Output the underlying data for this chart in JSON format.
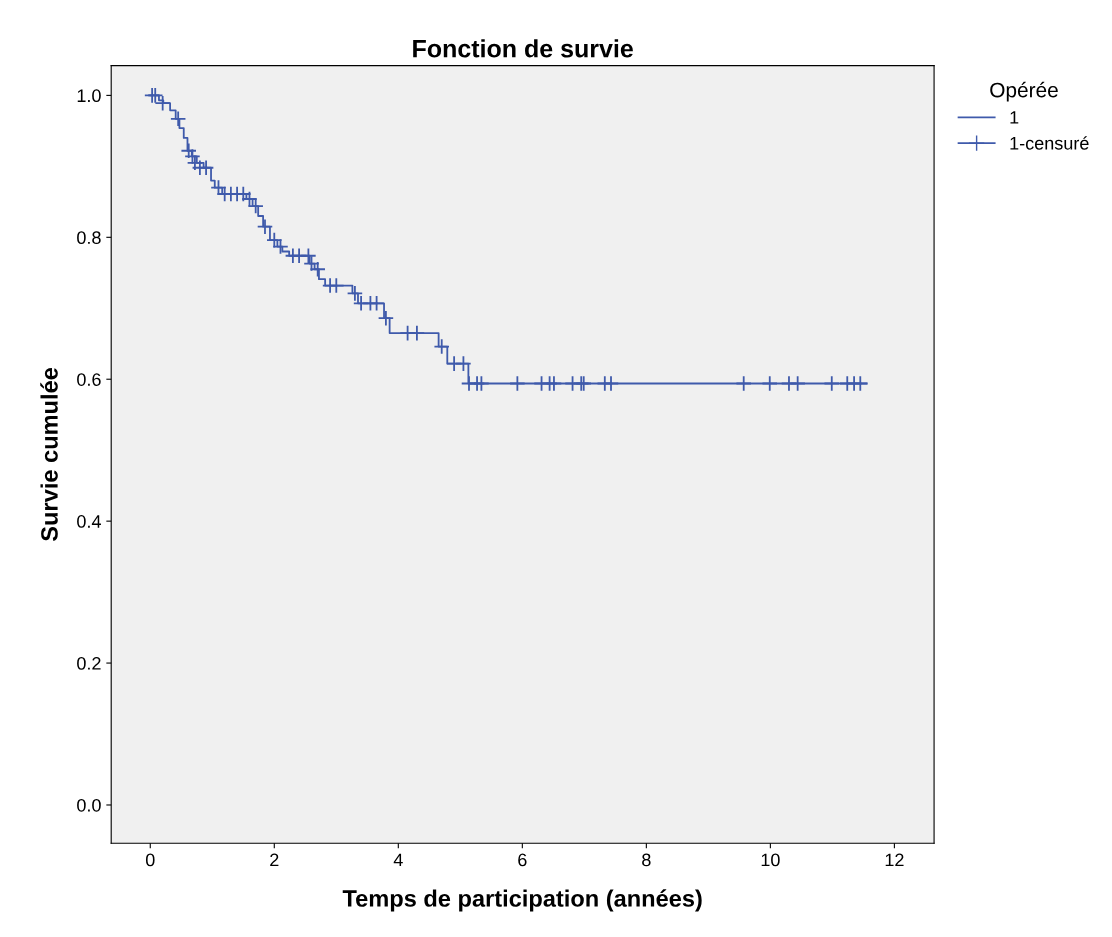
{
  "chart_data": {
    "type": "step",
    "title": "Fonction de survie",
    "xlabel": "Temps de participation (années)",
    "ylabel": "Survie cumulée",
    "legend_title": "Opérée",
    "xlim": [
      -0.63,
      12.64
    ],
    "ylim": [
      -0.054,
      1.042
    ],
    "xticks": [
      0,
      2,
      4,
      6,
      8,
      10,
      12
    ],
    "yticks": [
      {
        "value": 0,
        "label": "0.0"
      },
      0.2,
      0.4,
      0.6,
      0.8,
      {
        "value": 1,
        "label": "1.0"
      }
    ],
    "grid": false,
    "legend": "right",
    "series": [
      {
        "name": "1",
        "color": "#3f5aab",
        "marker": "none",
        "x": [
          0,
          0.14,
          0.21,
          0.32,
          0.41,
          0.47,
          0.54,
          0.6,
          0.67,
          0.75,
          0.86,
          0.98,
          1.04,
          1.16,
          1.55,
          1.65,
          1.74,
          1.82,
          1.93,
          2.05,
          2.13,
          2.24,
          2.57,
          2.65,
          2.72,
          2.82,
          3.26,
          3.35,
          3.77,
          3.86,
          4.65,
          4.79,
          5.13,
          11.55
        ],
        "values": [
          1.0,
          0.993,
          0.989,
          0.979,
          0.967,
          0.954,
          0.94,
          0.922,
          0.914,
          0.905,
          0.898,
          0.88,
          0.87,
          0.861,
          0.854,
          0.844,
          0.83,
          0.815,
          0.796,
          0.787,
          0.78,
          0.774,
          0.763,
          0.755,
          0.741,
          0.732,
          0.721,
          0.707,
          0.686,
          0.665,
          0.646,
          0.622,
          0.594,
          0.594
        ]
      },
      {
        "name": "1-censuré",
        "type": "scatter",
        "color": "#3f5aab",
        "marker": "cross",
        "x": [
          0.03,
          0.08,
          0.2,
          0.45,
          0.62,
          0.68,
          0.72,
          0.8,
          0.9,
          1.1,
          1.2,
          1.3,
          1.4,
          1.5,
          1.6,
          1.7,
          1.85,
          2.0,
          2.1,
          2.3,
          2.4,
          2.55,
          2.6,
          2.7,
          2.9,
          3.0,
          3.3,
          3.4,
          3.55,
          3.65,
          3.8,
          4.15,
          4.3,
          4.7,
          4.9,
          5.05,
          5.14,
          5.27,
          5.34,
          5.92,
          6.31,
          6.44,
          6.51,
          6.81,
          6.95,
          6.99,
          7.33,
          7.43,
          9.57,
          9.99,
          10.3,
          10.44,
          10.99,
          11.24,
          11.35,
          11.45
        ],
        "values": [
          1.0,
          1.0,
          0.989,
          0.967,
          0.922,
          0.914,
          0.905,
          0.898,
          0.898,
          0.87,
          0.861,
          0.861,
          0.861,
          0.861,
          0.854,
          0.844,
          0.815,
          0.796,
          0.787,
          0.774,
          0.774,
          0.774,
          0.763,
          0.755,
          0.732,
          0.732,
          0.721,
          0.707,
          0.707,
          0.707,
          0.686,
          0.665,
          0.665,
          0.646,
          0.622,
          0.622,
          0.594,
          0.594,
          0.594,
          0.594,
          0.594,
          0.594,
          0.594,
          0.594,
          0.594,
          0.594,
          0.594,
          0.594,
          0.594,
          0.594,
          0.594,
          0.594,
          0.594,
          0.594,
          0.594,
          0.594
        ]
      }
    ]
  }
}
